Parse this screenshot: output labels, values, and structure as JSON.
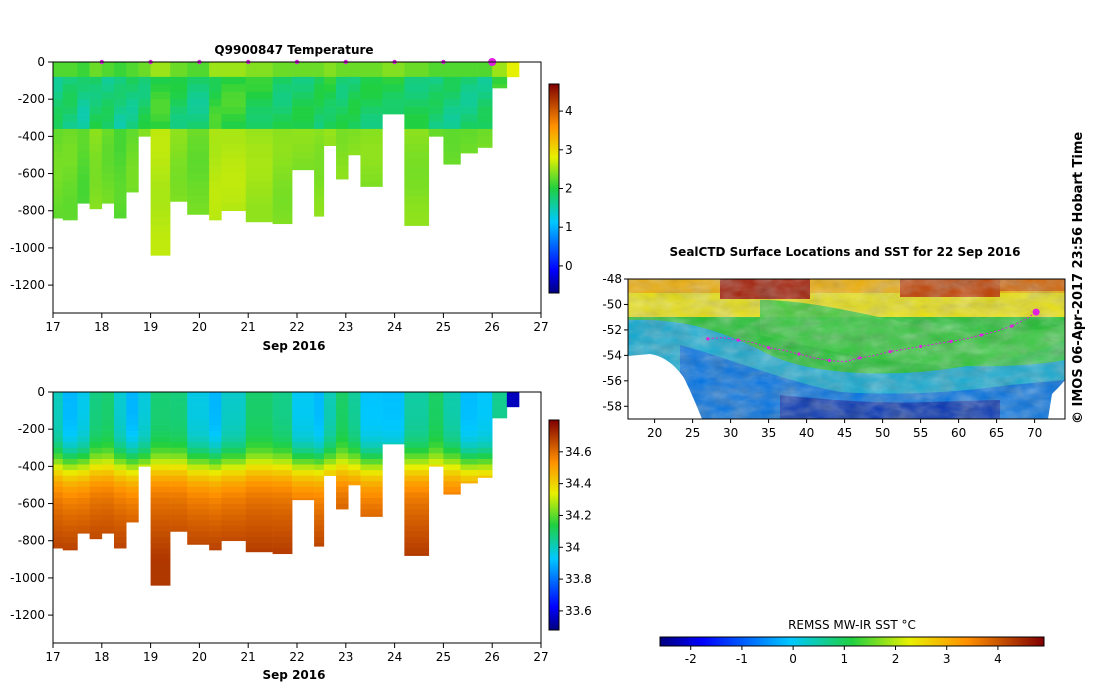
{
  "credit": "© IMOS 06-Apr-2017 23:56 Hobart Time",
  "chart_data": [
    {
      "type": "heatmap",
      "title": "Q9900847  Temperature",
      "xlabel": "Sep 2016",
      "ylabel": "",
      "x_ticks": [
        "17",
        "18",
        "19",
        "20",
        "21",
        "22",
        "23",
        "24",
        "25",
        "26",
        "27"
      ],
      "y_ticks": [
        "0",
        "-200",
        "-400",
        "-600",
        "-800",
        "-1000",
        "-1200"
      ],
      "xlim": [
        17,
        27
      ],
      "ylim": [
        -1350,
        0
      ],
      "colorbar_ticks": [
        "0",
        "1",
        "2",
        "3",
        "4"
      ],
      "colorbar_range": [
        -0.7,
        4.7
      ],
      "surface_markers": [
        18,
        19,
        20,
        21,
        22,
        23,
        24,
        25,
        26
      ],
      "profiles": [
        {
          "t": 17.0,
          "depth": 840,
          "value": 2.3
        },
        {
          "t": 17.2,
          "depth": 850,
          "value": 2.3
        },
        {
          "t": 17.5,
          "depth": 760,
          "value": 2.2
        },
        {
          "t": 17.75,
          "depth": 790,
          "value": 2.4
        },
        {
          "t": 18.0,
          "depth": 760,
          "value": 2.3
        },
        {
          "t": 18.25,
          "depth": 840,
          "value": 2.2
        },
        {
          "t": 18.5,
          "depth": 700,
          "value": 2.3
        },
        {
          "t": 18.75,
          "depth": 400,
          "value": 2.4
        },
        {
          "t": 19.0,
          "depth": 1040,
          "value": 2.6
        },
        {
          "t": 19.4,
          "depth": 750,
          "value": 2.4
        },
        {
          "t": 19.75,
          "depth": 820,
          "value": 2.3
        },
        {
          "t": 20.2,
          "depth": 850,
          "value": 2.6
        },
        {
          "t": 20.45,
          "depth": 800,
          "value": 2.6
        },
        {
          "t": 20.95,
          "depth": 860,
          "value": 2.5
        },
        {
          "t": 21.5,
          "depth": 870,
          "value": 2.4
        },
        {
          "t": 21.9,
          "depth": 580,
          "value": 2.4
        },
        {
          "t": 22.35,
          "depth": 830,
          "value": 2.4
        },
        {
          "t": 22.55,
          "depth": 450,
          "value": 2.5
        },
        {
          "t": 22.8,
          "depth": 630,
          "value": 2.4
        },
        {
          "t": 23.05,
          "depth": 500,
          "value": 2.4
        },
        {
          "t": 23.3,
          "depth": 670,
          "value": 2.4
        },
        {
          "t": 23.75,
          "depth": 280,
          "value": 2.5
        },
        {
          "t": 24.2,
          "depth": 880,
          "value": 2.4
        },
        {
          "t": 24.7,
          "depth": 400,
          "value": 2.3
        },
        {
          "t": 25.0,
          "depth": 550,
          "value": 2.3
        },
        {
          "t": 25.35,
          "depth": 490,
          "value": 2.3
        },
        {
          "t": 25.7,
          "depth": 460,
          "value": 2.3
        },
        {
          "t": 26.0,
          "depth": 140,
          "value": 2.6
        },
        {
          "t": 26.3,
          "depth": 80,
          "value": 2.9
        }
      ]
    },
    {
      "type": "heatmap",
      "title": "",
      "xlabel": "Sep 2016",
      "ylabel": "",
      "x_ticks": [
        "17",
        "18",
        "19",
        "20",
        "21",
        "22",
        "23",
        "24",
        "25",
        "26",
        "27"
      ],
      "y_ticks": [
        "0",
        "-200",
        "-400",
        "-600",
        "-800",
        "-1000",
        "-1200"
      ],
      "xlim": [
        17,
        27
      ],
      "ylim": [
        -1350,
        0
      ],
      "colorbar_ticks": [
        "33.6",
        "33.8",
        "34",
        "34.2",
        "34.4",
        "34.6"
      ],
      "colorbar_range": [
        33.48,
        34.8
      ],
      "profiles": [
        {
          "t": 17.0,
          "depth": 840
        },
        {
          "t": 17.2,
          "depth": 850
        },
        {
          "t": 17.5,
          "depth": 760
        },
        {
          "t": 17.75,
          "depth": 790
        },
        {
          "t": 18.0,
          "depth": 760
        },
        {
          "t": 18.25,
          "depth": 840
        },
        {
          "t": 18.5,
          "depth": 700
        },
        {
          "t": 18.75,
          "depth": 400
        },
        {
          "t": 19.0,
          "depth": 1040
        },
        {
          "t": 19.4,
          "depth": 750
        },
        {
          "t": 19.75,
          "depth": 820
        },
        {
          "t": 20.2,
          "depth": 850
        },
        {
          "t": 20.45,
          "depth": 800
        },
        {
          "t": 20.95,
          "depth": 860
        },
        {
          "t": 21.5,
          "depth": 870
        },
        {
          "t": 21.9,
          "depth": 580
        },
        {
          "t": 22.35,
          "depth": 830
        },
        {
          "t": 22.55,
          "depth": 450
        },
        {
          "t": 22.8,
          "depth": 630
        },
        {
          "t": 23.05,
          "depth": 500
        },
        {
          "t": 23.3,
          "depth": 670
        },
        {
          "t": 23.75,
          "depth": 280
        },
        {
          "t": 24.2,
          "depth": 880
        },
        {
          "t": 24.7,
          "depth": 400
        },
        {
          "t": 25.0,
          "depth": 550
        },
        {
          "t": 25.35,
          "depth": 490
        },
        {
          "t": 25.7,
          "depth": 460
        },
        {
          "t": 26.0,
          "depth": 140
        },
        {
          "t": 26.3,
          "depth": 80
        }
      ],
      "surface_value": 34.0,
      "deep_value": 34.7,
      "last_profile_value": 33.55
    },
    {
      "type": "heatmap",
      "title": "SealCTD Surface Locations and SST for 22 Sep 2016",
      "xlabel": "",
      "ylabel": "",
      "x_ticks": [
        "20",
        "25",
        "30",
        "35",
        "40",
        "45",
        "50",
        "55",
        "60",
        "65",
        "70"
      ],
      "y_ticks": [
        "-48",
        "-50",
        "-52",
        "-54",
        "-56",
        "-58"
      ],
      "xlim": [
        16.5,
        74
      ],
      "ylim": [
        -59,
        -48
      ],
      "track_lon": [
        27,
        29,
        31,
        33,
        35,
        37,
        39,
        41,
        43,
        45,
        47,
        49,
        51,
        53,
        55,
        57,
        59,
        61,
        63,
        65,
        67,
        69,
        70.2
      ],
      "track_lat": [
        -52.7,
        -52.6,
        -52.8,
        -53.0,
        -53.4,
        -53.6,
        -53.9,
        -54.2,
        -54.4,
        -54.5,
        -54.2,
        -54.0,
        -53.7,
        -53.5,
        -53.3,
        -53.1,
        -52.9,
        -52.7,
        -52.4,
        -52.1,
        -51.7,
        -51.1,
        -50.6
      ],
      "last_position": {
        "lon": 70.2,
        "lat": -50.6
      }
    }
  ],
  "colorbar_sst": {
    "label": "REMSS MW-IR SST °C",
    "ticks": [
      "-2",
      "-1",
      "0",
      "1",
      "2",
      "3",
      "4"
    ],
    "range": [
      -2.6,
      4.9
    ]
  }
}
